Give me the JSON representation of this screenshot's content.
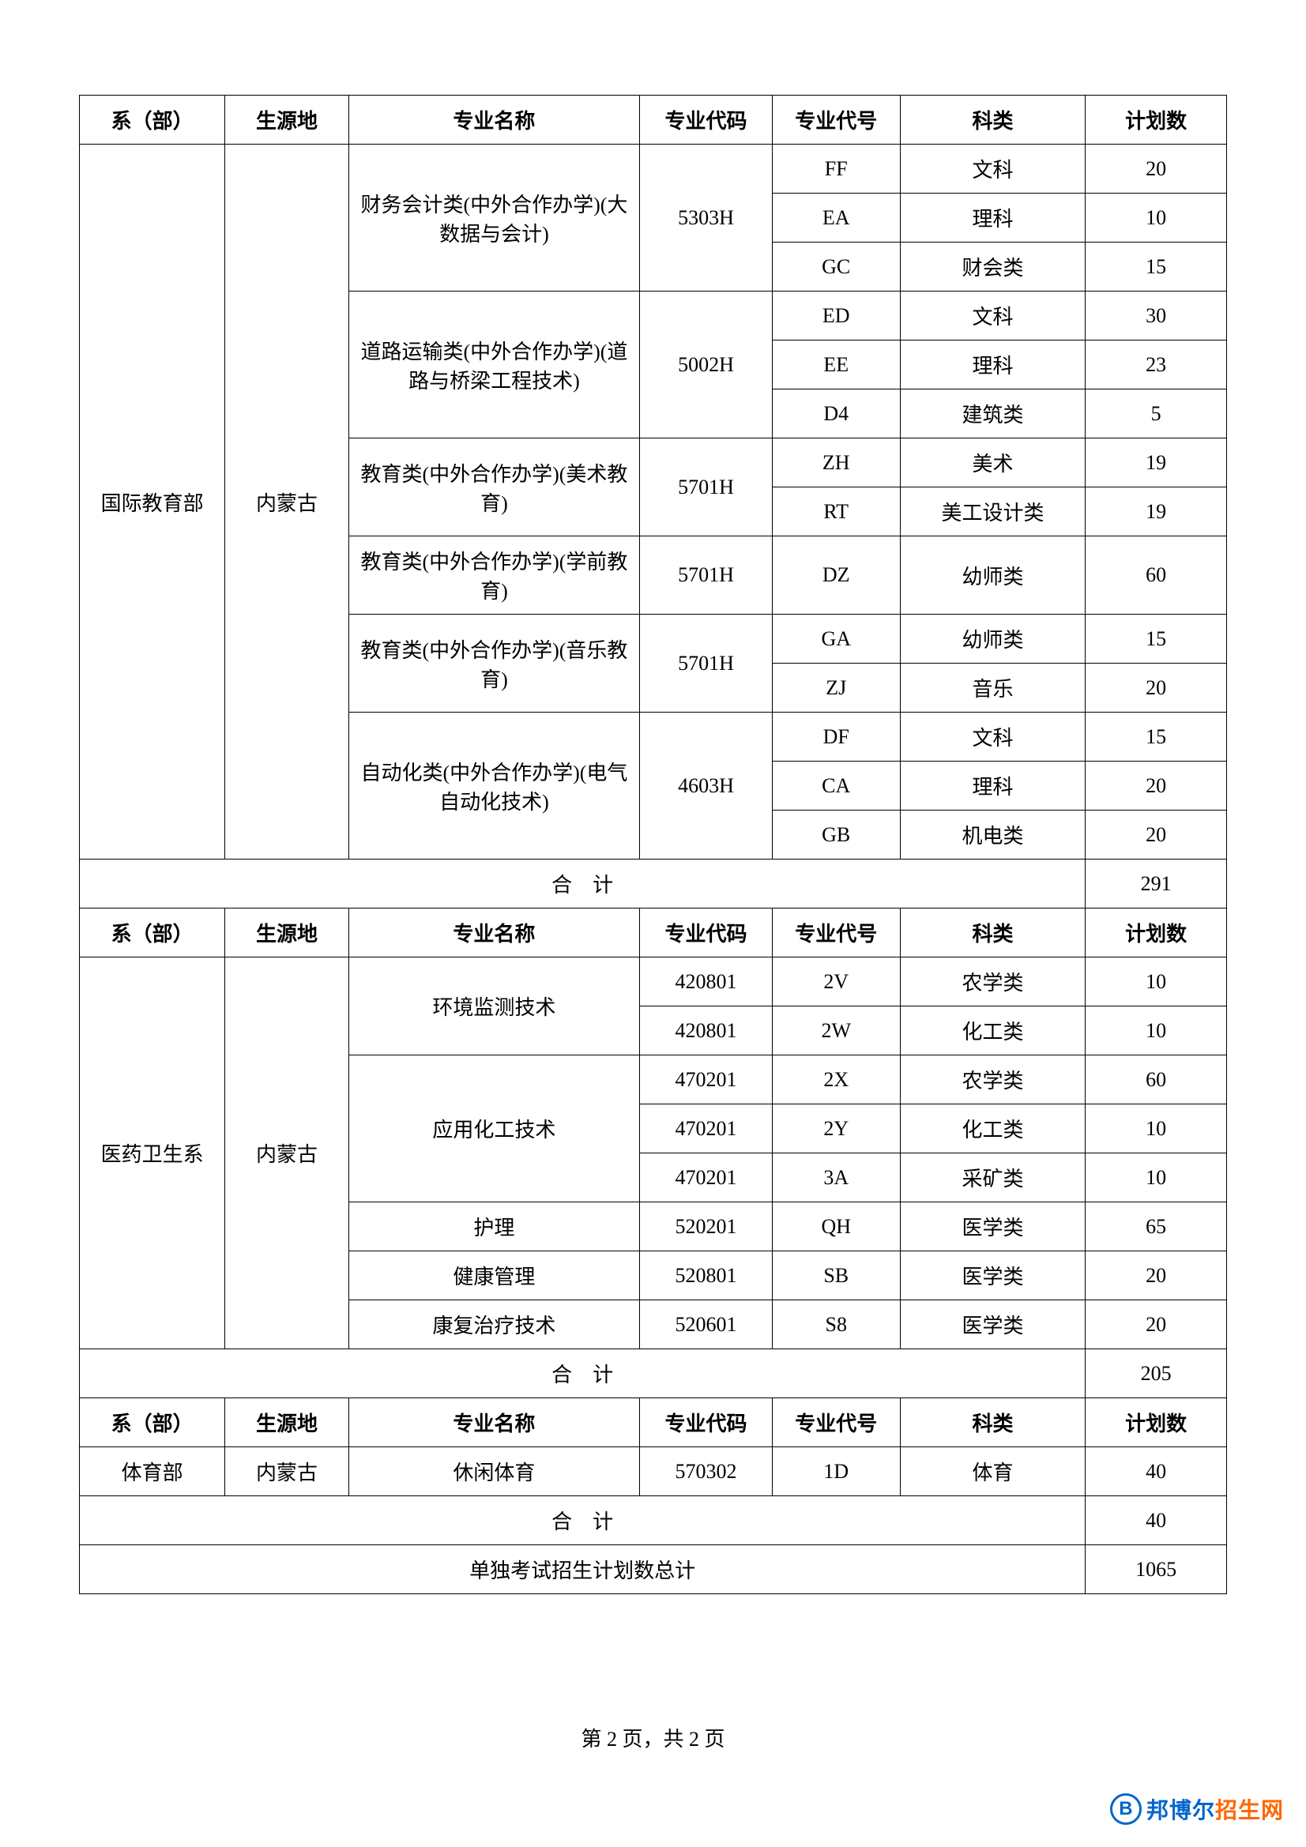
{
  "headers": {
    "dept": "系（部）",
    "origin": "生源地",
    "major": "专业名称",
    "code": "专业代码",
    "symbol": "专业代号",
    "category": "科类",
    "count": "计划数"
  },
  "section1": {
    "dept": "国际教育部",
    "origin": "内蒙古",
    "majors": [
      {
        "name": "财务会计类(中外合作办学)(大数据与会计)",
        "code": "5303H",
        "rows": [
          {
            "symbol": "FF",
            "category": "文科",
            "count": "20"
          },
          {
            "symbol": "EA",
            "category": "理科",
            "count": "10"
          },
          {
            "symbol": "GC",
            "category": "财会类",
            "count": "15"
          }
        ]
      },
      {
        "name": "道路运输类(中外合作办学)(道路与桥梁工程技术)",
        "code": "5002H",
        "rows": [
          {
            "symbol": "ED",
            "category": "文科",
            "count": "30"
          },
          {
            "symbol": "EE",
            "category": "理科",
            "count": "23"
          },
          {
            "symbol": "D4",
            "category": "建筑类",
            "count": "5"
          }
        ]
      },
      {
        "name": "教育类(中外合作办学)(美术教育)",
        "code": "5701H",
        "rows": [
          {
            "symbol": "ZH",
            "category": "美术",
            "count": "19"
          },
          {
            "symbol": "RT",
            "category": "美工设计类",
            "count": "19"
          }
        ]
      },
      {
        "name": "教育类(中外合作办学)(学前教育)",
        "code": "5701H",
        "rows": [
          {
            "symbol": "DZ",
            "category": "幼师类",
            "count": "60"
          }
        ]
      },
      {
        "name": "教育类(中外合作办学)(音乐教育)",
        "code": "5701H",
        "rows": [
          {
            "symbol": "GA",
            "category": "幼师类",
            "count": "15"
          },
          {
            "symbol": "ZJ",
            "category": "音乐",
            "count": "20"
          }
        ]
      },
      {
        "name": "自动化类(中外合作办学)(电气自动化技术)",
        "code": "4603H",
        "rows": [
          {
            "symbol": "DF",
            "category": "文科",
            "count": "15"
          },
          {
            "symbol": "CA",
            "category": "理科",
            "count": "20"
          },
          {
            "symbol": "GB",
            "category": "机电类",
            "count": "20"
          }
        ]
      }
    ],
    "subtotal_label": "合　计",
    "subtotal_value": "291"
  },
  "section2": {
    "dept": "医药卫生系",
    "origin": "内蒙古",
    "majors": [
      {
        "name": "环境监测技术",
        "rows": [
          {
            "code": "420801",
            "symbol": "2V",
            "category": "农学类",
            "count": "10"
          },
          {
            "code": "420801",
            "symbol": "2W",
            "category": "化工类",
            "count": "10"
          }
        ]
      },
      {
        "name": "应用化工技术",
        "rows": [
          {
            "code": "470201",
            "symbol": "2X",
            "category": "农学类",
            "count": "60"
          },
          {
            "code": "470201",
            "symbol": "2Y",
            "category": "化工类",
            "count": "10"
          },
          {
            "code": "470201",
            "symbol": "3A",
            "category": "采矿类",
            "count": "10"
          }
        ]
      },
      {
        "name": "护理",
        "rows": [
          {
            "code": "520201",
            "symbol": "QH",
            "category": "医学类",
            "count": "65"
          }
        ]
      },
      {
        "name": "健康管理",
        "rows": [
          {
            "code": "520801",
            "symbol": "SB",
            "category": "医学类",
            "count": "20"
          }
        ]
      },
      {
        "name": "康复治疗技术",
        "rows": [
          {
            "code": "520601",
            "symbol": "S8",
            "category": "医学类",
            "count": "20"
          }
        ]
      }
    ],
    "subtotal_label": "合　计",
    "subtotal_value": "205"
  },
  "section3": {
    "dept": "体育部",
    "origin": "内蒙古",
    "major": "休闲体育",
    "code": "570302",
    "symbol": "1D",
    "category": "体育",
    "count": "40",
    "subtotal_label": "合　计",
    "subtotal_value": "40"
  },
  "grand_total": {
    "label": "单独考试招生计划数总计",
    "value": "1065"
  },
  "footer": "第 2 页，共 2 页",
  "watermark": {
    "icon": "B",
    "text1": "邦博尔",
    "text2": "招生网"
  },
  "styling": {
    "border_color": "#000000",
    "text_color": "#000000",
    "background": "#ffffff",
    "wm_blue": "#0066cc",
    "wm_orange": "#ff6600",
    "font_size": 26,
    "border_width": 1.5
  }
}
